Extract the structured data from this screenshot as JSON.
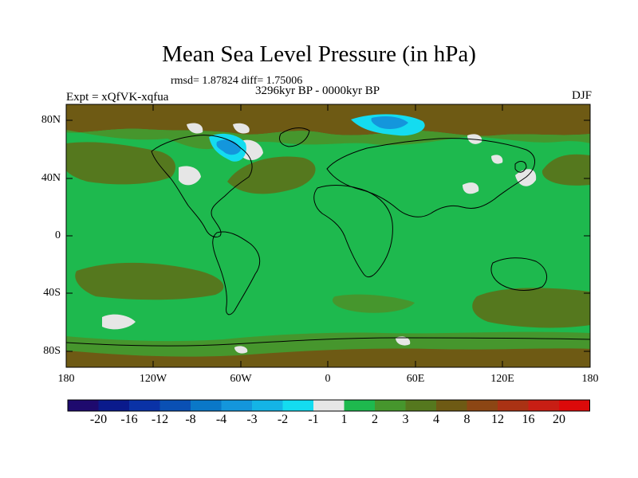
{
  "figure": {
    "title": "Mean Sea Level Pressure (in hPa)",
    "stats": "rmsd= 1.87824 diff= 1.75006",
    "period": "3296kyr BP - 0000kyr BP",
    "experiment": "Expt = xQfVK-xqfua",
    "season": "DJF"
  },
  "axes": {
    "lat_ticks": [
      "80N",
      "40N",
      "0",
      "40S",
      "80S"
    ],
    "lon_ticks": [
      "180",
      "120W",
      "60W",
      "0",
      "60E",
      "120E",
      "180"
    ]
  },
  "colorbar": {
    "labels": [
      "-20",
      "-16",
      "-12",
      "-8",
      "-4",
      "-3",
      "-2",
      "-1",
      "1",
      "2",
      "3",
      "4",
      "8",
      "12",
      "16",
      "20"
    ],
    "colors": [
      "#1e0a6e",
      "#0a1a8c",
      "#0a32a6",
      "#0a50b4",
      "#0a78c8",
      "#1496dc",
      "#14b4e6",
      "#14dcf0",
      "#e6e6e6",
      "#1eb94e",
      "#46962d",
      "#55781e",
      "#6e5a14",
      "#8c4614",
      "#aa3214",
      "#c81e14",
      "#dc0a0a"
    ]
  },
  "map": {
    "field_colors": {
      "ocean_positive": "#1eb94e",
      "positive_2_3": "#46962d",
      "positive_3_4": "#55781e",
      "positive_4_8": "#6e5a14",
      "near_zero": "#e6e6e6",
      "negative_2_3": "#14b4e6",
      "negative_3_4": "#1496dc",
      "negative_4_8": "#0a78c8",
      "negative_1_2": "#14dcf0"
    }
  }
}
